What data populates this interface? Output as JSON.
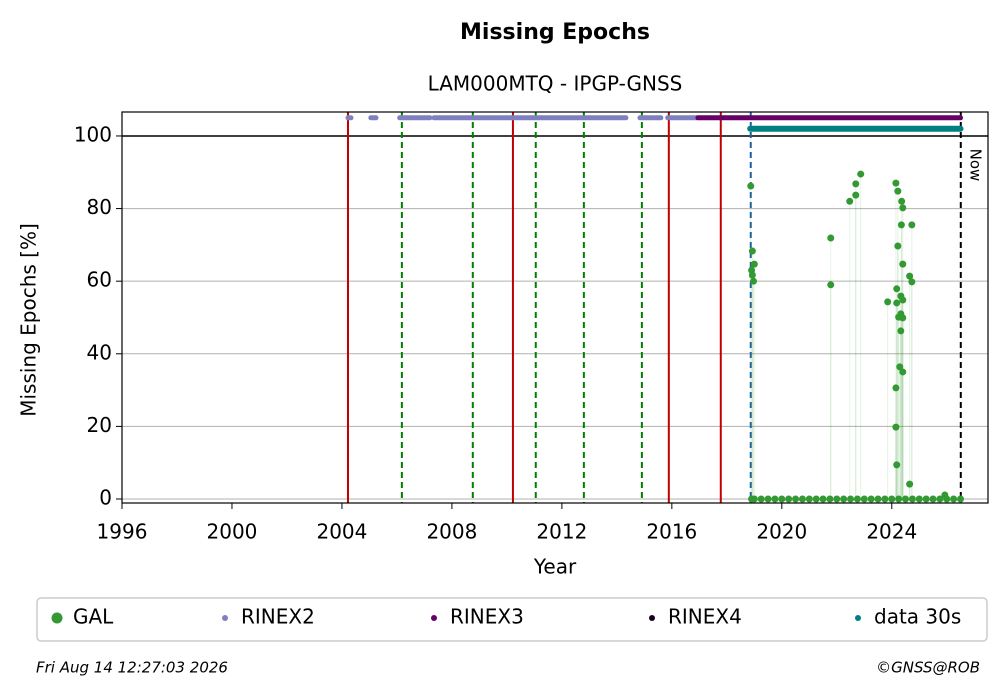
{
  "chart_data": {
    "type": "scatter",
    "title": "Missing Epochs",
    "subtitle": "LAM000MTQ - IPGP-GNSS",
    "x_label": "Year",
    "y_label": "Missing Epochs [%]",
    "xlim": [
      1996,
      2027.5
    ],
    "ylim": [
      -1.1,
      106.6
    ],
    "xticks": [
      1996,
      2000,
      2004,
      2008,
      2012,
      2016,
      2020,
      2024
    ],
    "yticks": [
      0,
      20,
      40,
      60,
      80,
      100
    ],
    "grid": true,
    "hline": 100,
    "vlines": [
      {
        "x": 2004.22,
        "color": "#008000",
        "style": "dashed"
      },
      {
        "x": 2006.18,
        "color": "#008000",
        "style": "dashed"
      },
      {
        "x": 2008.76,
        "color": "#008000",
        "style": "dashed"
      },
      {
        "x": 2011.05,
        "color": "#008000",
        "style": "dashed"
      },
      {
        "x": 2012.8,
        "color": "#008000",
        "style": "dashed"
      },
      {
        "x": 2014.91,
        "color": "#008000",
        "style": "dashed"
      },
      {
        "x": 2004.22,
        "color": "#c00000",
        "style": "solid"
      },
      {
        "x": 2010.22,
        "color": "#c00000",
        "style": "solid"
      },
      {
        "x": 2015.89,
        "color": "#c00000",
        "style": "solid"
      },
      {
        "x": 2017.78,
        "color": "#c00000",
        "style": "solid"
      },
      {
        "x": 2018.87,
        "color": "#1f5fa0",
        "style": "dashed"
      },
      {
        "x": 2026.51,
        "color": "#000000",
        "style": "dashed"
      }
    ],
    "now_label": "Now",
    "series": [
      {
        "name": "GAL",
        "color": "#339933",
        "mode": "points",
        "x": [
          2018.9,
          2019,
          2019.25,
          2019.5,
          2019.75,
          2020,
          2020.25,
          2020.5,
          2020.75,
          2021,
          2021.25,
          2021.5,
          2021.75,
          2022,
          2022.25,
          2022.5,
          2022.75,
          2023,
          2023.25,
          2023.5,
          2023.75,
          2024,
          2024.25,
          2024.5,
          2024.75,
          2025,
          2025.25,
          2025.5,
          2025.75,
          2026,
          2026.25,
          2026.5,
          2018.87,
          2018.93,
          2019.0,
          2018.9,
          2018.93,
          2018.97,
          2021.78,
          2021.78,
          2022.47,
          2022.69,
          2022.69,
          2022.87,
          2023.85,
          2024.15,
          2024.22,
          2024.22,
          2024.18,
          2024.18,
          2024.25,
          2024.15,
          2024.15,
          2024.18,
          2024.4,
          2024.36,
          2024.4,
          2024.35,
          2024.73,
          2024.65,
          2024.73,
          2024.33,
          2024.4,
          2024.33,
          2024.4,
          2024.33,
          2024.29,
          2024.4,
          2024.65,
          2025.93
        ],
        "values": [
          0,
          0,
          0,
          0,
          0,
          0,
          0,
          0,
          0,
          0,
          0,
          0,
          0,
          0,
          0,
          0,
          0,
          0,
          0,
          0,
          0,
          0,
          0,
          0,
          0,
          0,
          0,
          0,
          0,
          0,
          0,
          0,
          86.2,
          68.3,
          64.7,
          63,
          61.7,
          60,
          71.9,
          59,
          82,
          86.8,
          83.7,
          89.5,
          54.3,
          87,
          84.8,
          69.7,
          57.9,
          54,
          50.1,
          30.6,
          19.8,
          9.4,
          64.7,
          82,
          80.2,
          75.5,
          75.5,
          61.4,
          59.8,
          55.9,
          54.8,
          51,
          49.9,
          46.3,
          36.4,
          35,
          4.1,
          1.1
        ]
      },
      {
        "name": "RINEX2",
        "color": "#8080c0",
        "mode": "segments",
        "x": [
          2004.22,
          2004.33,
          2004.33,
          2005.05,
          2005.24,
          2005.24,
          2006.1,
          2007.2,
          2007.2,
          2007.35,
          2014.33,
          2014.33,
          2014.84,
          2015.6,
          2015.6,
          2015.85,
          2016.9
        ],
        "values": [
          105,
          105,
          null,
          105,
          105,
          null,
          105,
          105,
          null,
          105,
          105,
          null,
          105,
          105,
          null,
          105,
          105
        ]
      },
      {
        "name": "RINEX3",
        "color": "#660066",
        "mode": "segments",
        "x": [
          2016.95,
          2026.5
        ],
        "values": [
          105,
          105
        ]
      },
      {
        "name": "RINEX4",
        "color": "#1a0020",
        "mode": "segments",
        "x": [],
        "values": []
      },
      {
        "name": "data 30s",
        "color": "#008080",
        "mode": "segments",
        "x": [
          2018.85,
          2026.5
        ],
        "values": [
          102,
          102
        ]
      }
    ],
    "footer_left": "Fri Aug 14 12:27:03 2026",
    "footer_right": "©GNSS@ROB"
  }
}
